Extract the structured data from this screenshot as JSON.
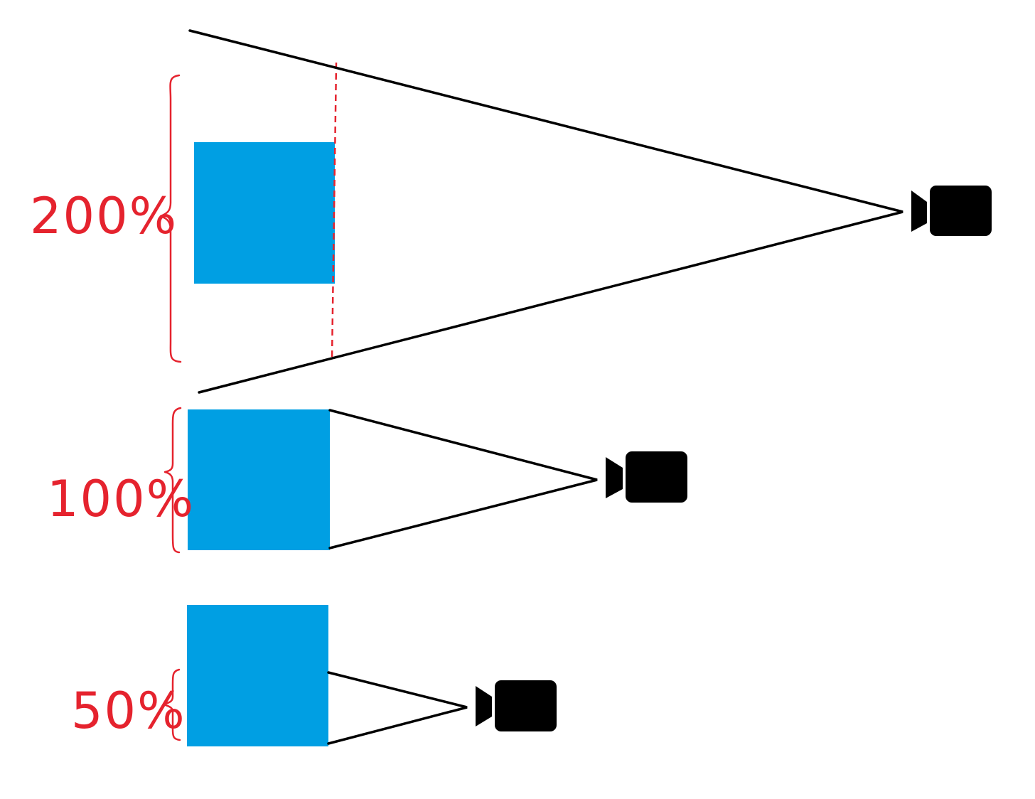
{
  "colors": {
    "background": "#ffffff",
    "object_fill": "#009fe3",
    "annotation": "#e5232e",
    "lines": "#000000",
    "camera": "#000000"
  },
  "panels": [
    {
      "label": "200%",
      "camera_icon": "video-camera-icon",
      "shows_frame_edge": true
    },
    {
      "label": "100%",
      "camera_icon": "video-camera-icon",
      "shows_frame_edge": false
    },
    {
      "label": "50%",
      "camera_icon": "video-camera-icon",
      "shows_frame_edge": false
    }
  ]
}
